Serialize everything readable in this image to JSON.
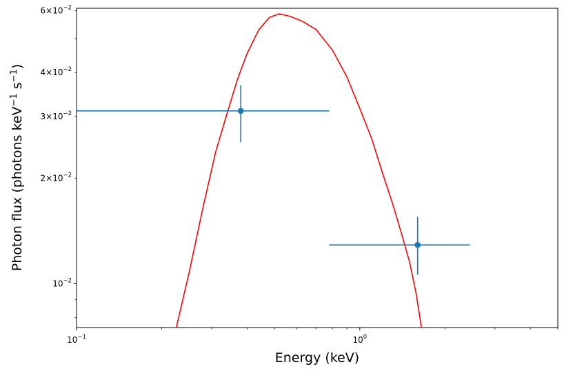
{
  "chart_data": {
    "type": "scatter",
    "xlabel": "Energy (keV)",
    "ylabel_parts": {
      "prefix": "Photon flux (photons keV",
      "exp1": "−1",
      "middle": " s",
      "exp2": "−1",
      "suffix": ")"
    },
    "x_scale": "log",
    "y_scale": "log",
    "xlim": [
      0.1,
      5.0
    ],
    "ylim": [
      0.0075,
      0.061
    ],
    "x_ticks": [
      {
        "value": 0.1,
        "base": "10",
        "exp": "−1"
      },
      {
        "value": 1.0,
        "base": "10",
        "exp": "0"
      }
    ],
    "y_ticks": [
      {
        "value": 0.01,
        "base": "10",
        "exp": "−2",
        "mantissa": ""
      },
      {
        "value": 0.02,
        "base": "10",
        "exp": "−2",
        "mantissa": "2×"
      },
      {
        "value": 0.03,
        "base": "10",
        "exp": "−2",
        "mantissa": "3×"
      },
      {
        "value": 0.04,
        "base": "10",
        "exp": "−2",
        "mantissa": "4×"
      },
      {
        "value": 0.06,
        "base": "10",
        "exp": "−2",
        "mantissa": "6×"
      }
    ],
    "data_points": [
      {
        "x": 0.38,
        "y": 0.0311,
        "xerr_low": 0.1,
        "xerr_high": 0.78,
        "yerr_low": 0.0253,
        "yerr_high": 0.0368
      },
      {
        "x": 1.6,
        "y": 0.0129,
        "xerr_low": 0.78,
        "xerr_high": 2.45,
        "yerr_low": 0.0106,
        "yerr_high": 0.0155
      }
    ],
    "model_curve": [
      {
        "x": 0.225,
        "y": 0.0075
      },
      {
        "x": 0.25,
        "y": 0.0108
      },
      {
        "x": 0.28,
        "y": 0.0166
      },
      {
        "x": 0.31,
        "y": 0.0238
      },
      {
        "x": 0.34,
        "y": 0.0306
      },
      {
        "x": 0.37,
        "y": 0.0383
      },
      {
        "x": 0.4,
        "y": 0.0453
      },
      {
        "x": 0.44,
        "y": 0.053
      },
      {
        "x": 0.48,
        "y": 0.0575
      },
      {
        "x": 0.52,
        "y": 0.0588
      },
      {
        "x": 0.57,
        "y": 0.0578
      },
      {
        "x": 0.63,
        "y": 0.0559
      },
      {
        "x": 0.7,
        "y": 0.0531
      },
      {
        "x": 0.8,
        "y": 0.0464
      },
      {
        "x": 0.9,
        "y": 0.0389
      },
      {
        "x": 1.0,
        "y": 0.0316
      },
      {
        "x": 1.1,
        "y": 0.026
      },
      {
        "x": 1.2,
        "y": 0.0208
      },
      {
        "x": 1.3,
        "y": 0.0171
      },
      {
        "x": 1.4,
        "y": 0.014
      },
      {
        "x": 1.5,
        "y": 0.0115
      },
      {
        "x": 1.58,
        "y": 0.0094
      },
      {
        "x": 1.65,
        "y": 0.0075
      }
    ],
    "colors": {
      "data": "#1f77b4",
      "model": "#ff0000",
      "axes": "#000000"
    },
    "grid": false,
    "legend": "none"
  }
}
